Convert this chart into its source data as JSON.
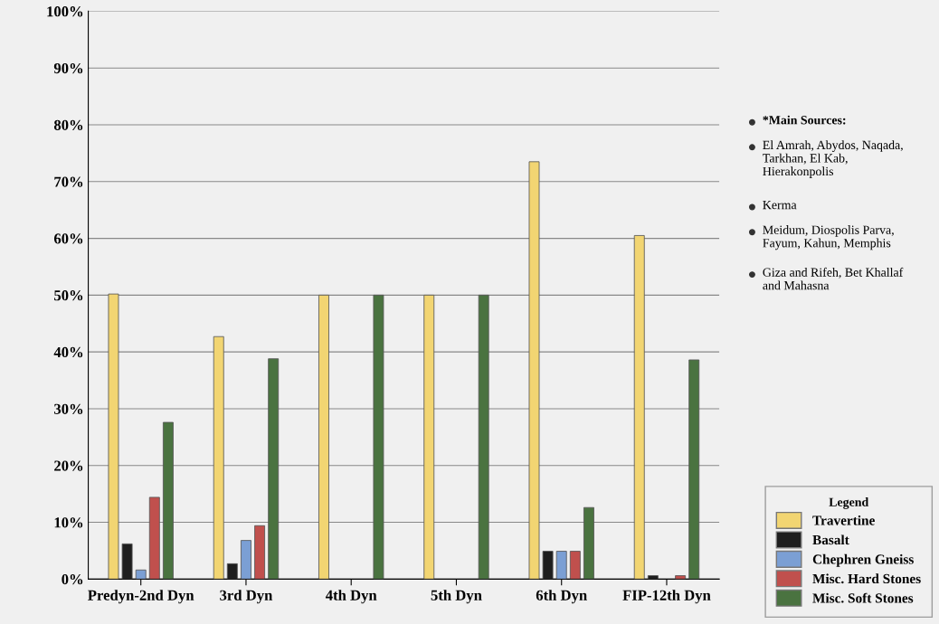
{
  "chart_data": {
    "type": "bar",
    "categories": [
      "Predyn-2nd Dyn",
      "3rd Dyn",
      "4th Dyn",
      "5th Dyn",
      "6th Dyn",
      "FIP-12th Dyn"
    ],
    "series": [
      {
        "name": "Travertine",
        "color": "#f2d572",
        "values": [
          50.2,
          42.7,
          50,
          50,
          73.5,
          60.5
        ]
      },
      {
        "name": "Basalt",
        "color": "#1e1e1e",
        "values": [
          6.2,
          2.7,
          0,
          0,
          4.9,
          0.6
        ]
      },
      {
        "name": "Chephren Gneiss",
        "color": "#7b9fd4",
        "values": [
          1.6,
          6.8,
          0,
          0,
          4.9,
          0
        ]
      },
      {
        "name": "Misc. Hard Stones",
        "color": "#c0504d",
        "values": [
          14.4,
          9.4,
          0,
          0,
          4.9,
          0.6
        ]
      },
      {
        "name": "Misc. Soft Stones",
        "color": "#4a7340",
        "values": [
          27.6,
          38.8,
          50,
          50,
          12.6,
          38.6
        ]
      }
    ],
    "ylim": [
      0,
      100
    ],
    "yticks": [
      {
        "value": 0,
        "label": "0%"
      },
      {
        "value": 10,
        "label": "10%"
      },
      {
        "value": 20,
        "label": "20%"
      },
      {
        "value": 30,
        "label": "30%"
      },
      {
        "value": 40,
        "label": "40%"
      },
      {
        "value": 50,
        "label": "50%"
      },
      {
        "value": 60,
        "label": "60%"
      },
      {
        "value": 70,
        "label": "70%"
      },
      {
        "value": 80,
        "label": "80%"
      },
      {
        "value": 90,
        "label": "90%"
      },
      {
        "value": 100,
        "label": "100%"
      }
    ],
    "grid": "y",
    "legend": "bottom right",
    "legend_title": "Legend",
    "annotations": [
      "*Main Sources:",
      "El Amrah, Abydos, Naqada, Tarkhan, El Kab, Hierakonpolis",
      "Kerma",
      "Meidum, Diospolis Parva, Fayum, Kahun, Memphis",
      "Giza and Rifeh, Bet Khallaf and Mahasna"
    ]
  }
}
